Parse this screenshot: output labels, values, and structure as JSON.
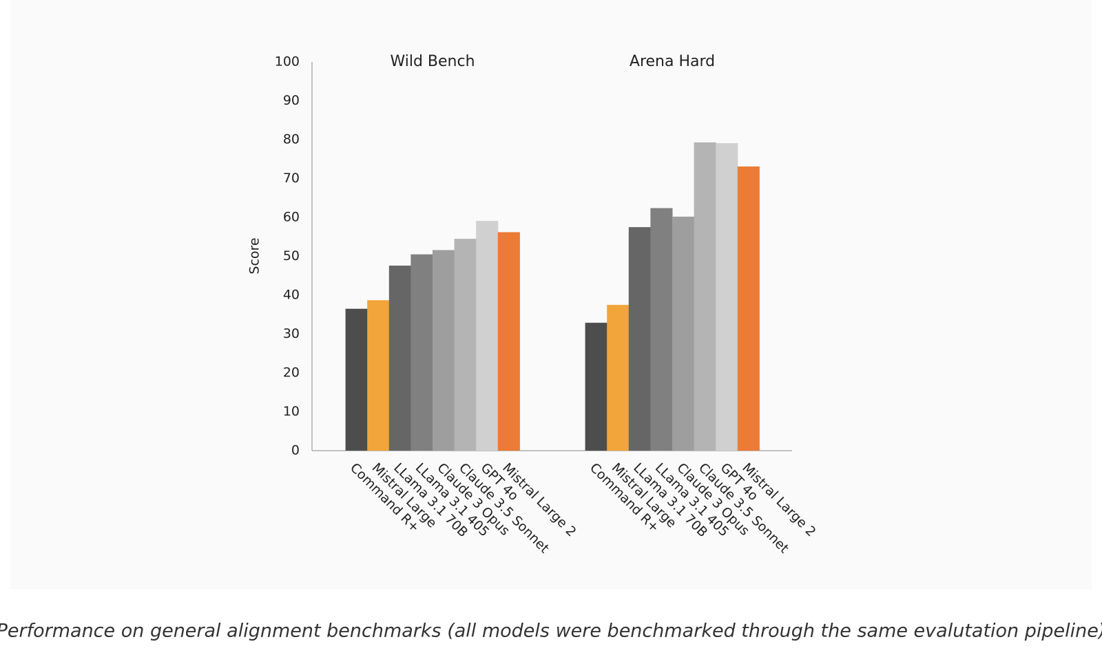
{
  "chart_data": {
    "type": "bar",
    "categories": [
      "Wild Bench",
      "Arena Hard"
    ],
    "y_label": "Score",
    "ylim": [
      0,
      100
    ],
    "yticks": [
      0,
      10,
      20,
      30,
      40,
      50,
      60,
      70,
      80,
      90,
      100
    ],
    "grid": false,
    "series": [
      {
        "name": "Command R+",
        "color": "#4d4d4d",
        "values": [
          36.5,
          32.9
        ]
      },
      {
        "name": "Mistral Large",
        "color": "#f2a53a",
        "values": [
          38.7,
          37.5
        ]
      },
      {
        "name": "LLama 3.1 70B",
        "color": "#666666",
        "values": [
          47.6,
          57.5
        ]
      },
      {
        "name": "LLama 3.1 405",
        "color": "#808080",
        "values": [
          50.5,
          62.4
        ]
      },
      {
        "name": "Claude 3 Opus",
        "color": "#9e9e9e",
        "values": [
          51.6,
          60.2
        ]
      },
      {
        "name": "Claude 3.5 Sonnet",
        "color": "#b4b4b4",
        "values": [
          54.5,
          79.3
        ]
      },
      {
        "name": "GPT 4o",
        "color": "#d0d0d0",
        "values": [
          59.1,
          79.1
        ]
      },
      {
        "name": "Mistral Large 2",
        "color": "#ec7b35",
        "values": [
          56.2,
          73.1
        ]
      }
    ]
  },
  "caption": "Performance on general alignment benchmarks (all models were benchmarked through the same evalutation pipeline)"
}
